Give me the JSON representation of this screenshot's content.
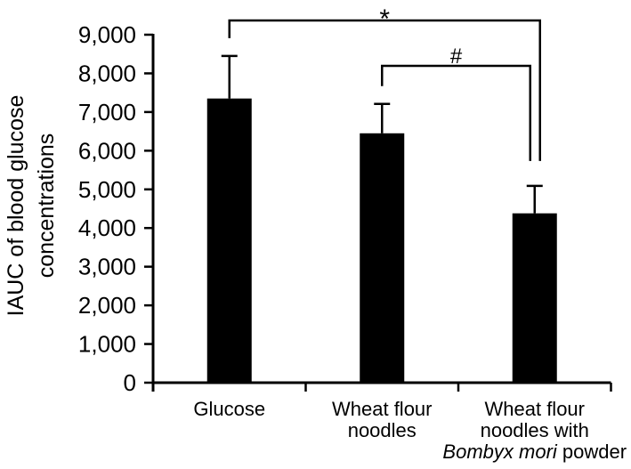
{
  "figure": {
    "background": "#ffffff",
    "ink": "#000000"
  },
  "chart_data": {
    "type": "bar",
    "title": "",
    "xlabel": "",
    "ylabel": "IAUC of blood glucose concentrations",
    "ylabel_lines": [
      "IAUC of blood glucose",
      "concentrations"
    ],
    "categories": [
      "Glucose",
      "Wheat flour noodles",
      "Wheat flour noodles with Bombyx mori powder"
    ],
    "category_label_lines": [
      [
        [
          {
            "text": "Glucose",
            "italic": false
          }
        ]
      ],
      [
        [
          {
            "text": "Wheat flour",
            "italic": false
          }
        ],
        [
          {
            "text": "noodles",
            "italic": false
          }
        ]
      ],
      [
        [
          {
            "text": "Wheat flour",
            "italic": false
          }
        ],
        [
          {
            "text": "noodles with",
            "italic": false
          }
        ],
        [
          {
            "text": "Bombyx mori",
            "italic": true
          },
          {
            "text": " powder",
            "italic": false
          }
        ]
      ]
    ],
    "values": [
      7350,
      6450,
      4380
    ],
    "errors": [
      1100,
      760,
      710
    ],
    "bar_color": "#000000",
    "ylim": [
      0,
      9000
    ],
    "ytick_step": 1000,
    "ytick_labels": [
      "0",
      "1,000",
      "2,000",
      "3,000",
      "4,000",
      "5,000",
      "6,000",
      "7,000",
      "8,000",
      "9,000"
    ],
    "grid": false,
    "legend_position": "none",
    "significance_brackets": [
      {
        "label": "*",
        "from": 0,
        "to": 2
      },
      {
        "label": "#",
        "from": 1,
        "to": 2
      }
    ]
  }
}
